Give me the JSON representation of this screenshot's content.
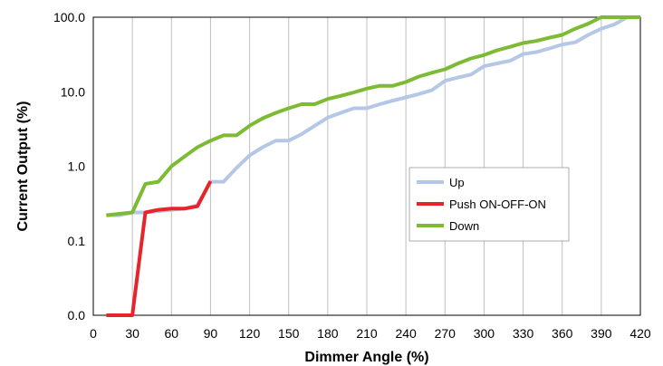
{
  "chart_data": {
    "type": "line",
    "xlabel": "Dimmer Angle (%)",
    "ylabel": "Current Output (%)",
    "xlim": [
      0,
      420
    ],
    "x_ticks": [
      "0",
      "30",
      "60",
      "90",
      "120",
      "150",
      "180",
      "210",
      "240",
      "270",
      "300",
      "330",
      "360",
      "390",
      "420"
    ],
    "y_scale": "log (0.0 at bottom = 0.01)",
    "y_ticks": [
      "0.0",
      "0.1",
      "1.0",
      "10.0",
      "100.0"
    ],
    "grid": "vertical gridlines only",
    "legend_position": "center-right",
    "series": [
      {
        "name": "Up",
        "color": "#b4c7e7",
        "points": [
          [
            10,
            0.22
          ],
          [
            20,
            0.22
          ],
          [
            30,
            0.24
          ],
          [
            40,
            0.24
          ],
          [
            50,
            0.25
          ],
          [
            60,
            0.26
          ],
          [
            70,
            0.27
          ],
          [
            80,
            0.3
          ],
          [
            90,
            0.62
          ],
          [
            100,
            0.62
          ],
          [
            110,
            0.95
          ],
          [
            120,
            1.4
          ],
          [
            130,
            1.8
          ],
          [
            140,
            2.2
          ],
          [
            150,
            2.2
          ],
          [
            160,
            2.7
          ],
          [
            170,
            3.5
          ],
          [
            180,
            4.5
          ],
          [
            190,
            5.2
          ],
          [
            200,
            6.0
          ],
          [
            210,
            6.0
          ],
          [
            220,
            6.8
          ],
          [
            230,
            7.6
          ],
          [
            240,
            8.4
          ],
          [
            250,
            9.3
          ],
          [
            260,
            10.5
          ],
          [
            270,
            14
          ],
          [
            280,
            15.5
          ],
          [
            290,
            17
          ],
          [
            300,
            22
          ],
          [
            310,
            24
          ],
          [
            320,
            26
          ],
          [
            330,
            32
          ],
          [
            340,
            34
          ],
          [
            350,
            38
          ],
          [
            360,
            43
          ],
          [
            370,
            46
          ],
          [
            380,
            58
          ],
          [
            390,
            70
          ],
          [
            400,
            80
          ],
          [
            410,
            100
          ],
          [
            420,
            100
          ]
        ]
      },
      {
        "name": "Push ON-OFF-ON",
        "color": "#e8242b",
        "points": [
          [
            10,
            0.01
          ],
          [
            20,
            0.01
          ],
          [
            30,
            0.01
          ],
          [
            40,
            0.24
          ],
          [
            50,
            0.26
          ],
          [
            60,
            0.27
          ],
          [
            70,
            0.27
          ],
          [
            80,
            0.29
          ],
          [
            90,
            0.63
          ]
        ]
      },
      {
        "name": "Down",
        "color": "#7dbb35",
        "points": [
          [
            10,
            0.22
          ],
          [
            20,
            0.23
          ],
          [
            30,
            0.24
          ],
          [
            40,
            0.58
          ],
          [
            50,
            0.62
          ],
          [
            60,
            1.0
          ],
          [
            70,
            1.35
          ],
          [
            80,
            1.8
          ],
          [
            90,
            2.2
          ],
          [
            100,
            2.6
          ],
          [
            110,
            2.6
          ],
          [
            120,
            3.5
          ],
          [
            130,
            4.4
          ],
          [
            140,
            5.2
          ],
          [
            150,
            6.0
          ],
          [
            160,
            6.8
          ],
          [
            170,
            6.8
          ],
          [
            180,
            8.0
          ],
          [
            190,
            8.8
          ],
          [
            200,
            9.8
          ],
          [
            210,
            11.0
          ],
          [
            220,
            12.0
          ],
          [
            230,
            12.0
          ],
          [
            240,
            13.5
          ],
          [
            250,
            16
          ],
          [
            260,
            18
          ],
          [
            270,
            20
          ],
          [
            280,
            24
          ],
          [
            290,
            28
          ],
          [
            300,
            31
          ],
          [
            310,
            36
          ],
          [
            320,
            40
          ],
          [
            330,
            45
          ],
          [
            340,
            48
          ],
          [
            350,
            53
          ],
          [
            360,
            58
          ],
          [
            370,
            70
          ],
          [
            380,
            82
          ],
          [
            390,
            100
          ],
          [
            400,
            100
          ],
          [
            410,
            100
          ],
          [
            420,
            100
          ]
        ]
      }
    ]
  }
}
